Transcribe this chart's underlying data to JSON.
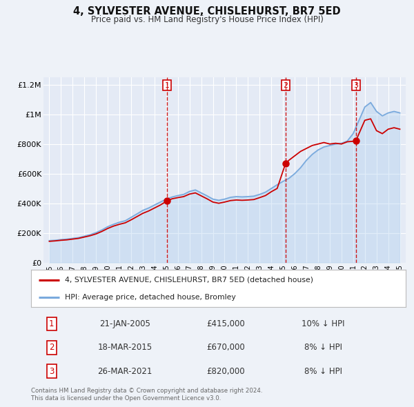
{
  "title": "4, SYLVESTER AVENUE, CHISLEHURST, BR7 5ED",
  "subtitle": "Price paid vs. HM Land Registry's House Price Index (HPI)",
  "bg_color": "#eef2f8",
  "plot_bg_color": "#e4eaf5",
  "grid_color": "#ffffff",
  "red_line_color": "#cc0000",
  "blue_line_color": "#7aaadd",
  "blue_fill_color": "#aaccee",
  "ylim": [
    0,
    1250000
  ],
  "yticks": [
    0,
    200000,
    400000,
    600000,
    800000,
    1000000,
    1200000
  ],
  "ytick_labels": [
    "£0",
    "£200K",
    "£400K",
    "£600K",
    "£800K",
    "£1M",
    "£1.2M"
  ],
  "sale_dates": [
    2005.06,
    2015.22,
    2021.23
  ],
  "sale_prices": [
    415000,
    670000,
    820000
  ],
  "sale_labels": [
    "1",
    "2",
    "3"
  ],
  "table_data": [
    [
      "1",
      "21-JAN-2005",
      "£415,000",
      "10% ↓ HPI"
    ],
    [
      "2",
      "18-MAR-2015",
      "£670,000",
      "8% ↓ HPI"
    ],
    [
      "3",
      "26-MAR-2021",
      "£820,000",
      "8% ↓ HPI"
    ]
  ],
  "legend_line1": "4, SYLVESTER AVENUE, CHISLEHURST, BR7 5ED (detached house)",
  "legend_line2": "HPI: Average price, detached house, Bromley",
  "footer": "Contains HM Land Registry data © Crown copyright and database right 2024.\nThis data is licensed under the Open Government Licence v3.0.",
  "hpi_years": [
    1995.0,
    1995.5,
    1996.0,
    1996.5,
    1997.0,
    1997.5,
    1998.0,
    1998.5,
    1999.0,
    1999.5,
    2000.0,
    2000.5,
    2001.0,
    2001.5,
    2002.0,
    2002.5,
    2003.0,
    2003.5,
    2004.0,
    2004.5,
    2005.0,
    2005.5,
    2006.0,
    2006.5,
    2007.0,
    2007.5,
    2008.0,
    2008.5,
    2009.0,
    2009.5,
    2010.0,
    2010.5,
    2011.0,
    2011.5,
    2012.0,
    2012.5,
    2013.0,
    2013.5,
    2014.0,
    2014.5,
    2015.0,
    2015.5,
    2016.0,
    2016.5,
    2017.0,
    2017.5,
    2018.0,
    2018.5,
    2019.0,
    2019.5,
    2020.0,
    2020.5,
    2021.0,
    2021.5,
    2022.0,
    2022.5,
    2023.0,
    2023.5,
    2024.0,
    2024.5,
    2025.0
  ],
  "hpi_values": [
    148000,
    150000,
    155000,
    158000,
    163000,
    168000,
    178000,
    188000,
    202000,
    220000,
    242000,
    258000,
    272000,
    282000,
    305000,
    328000,
    352000,
    368000,
    388000,
    408000,
    428000,
    442000,
    452000,
    460000,
    480000,
    490000,
    470000,
    450000,
    428000,
    420000,
    428000,
    440000,
    445000,
    443000,
    445000,
    448000,
    460000,
    475000,
    500000,
    525000,
    548000,
    568000,
    600000,
    640000,
    690000,
    730000,
    760000,
    780000,
    790000,
    800000,
    805000,
    820000,
    870000,
    960000,
    1050000,
    1080000,
    1020000,
    990000,
    1010000,
    1020000,
    1010000
  ],
  "red_years": [
    1995.0,
    1995.5,
    1996.0,
    1996.5,
    1997.0,
    1997.5,
    1998.0,
    1998.5,
    1999.0,
    1999.5,
    2000.0,
    2000.5,
    2001.0,
    2001.5,
    2002.0,
    2002.5,
    2003.0,
    2003.5,
    2004.0,
    2004.5,
    2005.06,
    2005.5,
    2006.0,
    2006.5,
    2007.0,
    2007.5,
    2008.0,
    2008.5,
    2009.0,
    2009.5,
    2010.0,
    2010.5,
    2011.0,
    2011.5,
    2012.0,
    2012.5,
    2013.0,
    2013.5,
    2014.0,
    2014.5,
    2015.22,
    2015.5,
    2016.0,
    2016.5,
    2017.0,
    2017.5,
    2018.0,
    2018.5,
    2019.0,
    2019.5,
    2020.0,
    2020.5,
    2021.23,
    2021.5,
    2022.0,
    2022.5,
    2023.0,
    2023.5,
    2024.0,
    2024.5,
    2025.0
  ],
  "red_values": [
    143000,
    146000,
    150000,
    153000,
    158000,
    163000,
    172000,
    181000,
    193000,
    210000,
    230000,
    246000,
    258000,
    268000,
    288000,
    310000,
    332000,
    348000,
    368000,
    388000,
    415000,
    430000,
    438000,
    445000,
    462000,
    470000,
    450000,
    430000,
    408000,
    400000,
    408000,
    418000,
    422000,
    420000,
    422000,
    425000,
    438000,
    452000,
    478000,
    500000,
    670000,
    690000,
    720000,
    750000,
    770000,
    790000,
    800000,
    810000,
    800000,
    805000,
    800000,
    815000,
    820000,
    870000,
    960000,
    970000,
    890000,
    870000,
    900000,
    910000,
    900000
  ]
}
